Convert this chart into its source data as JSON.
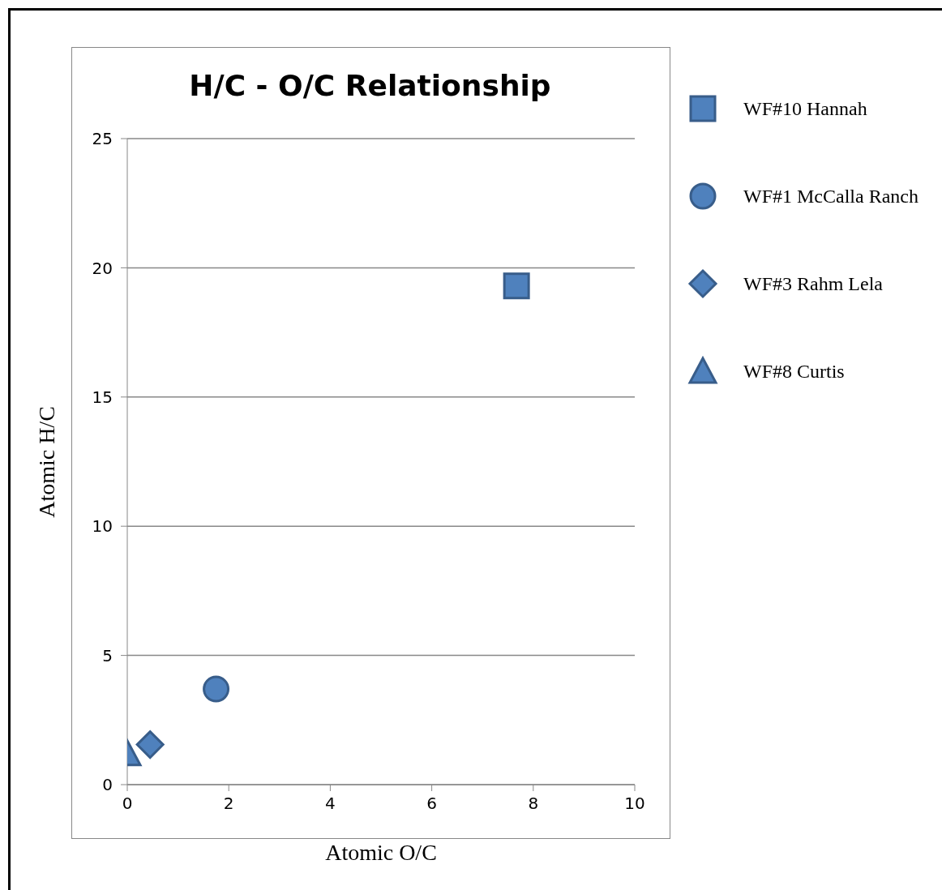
{
  "chart_data": {
    "type": "scatter",
    "title": "H/C - O/C Relationship",
    "xlabel": "Atomic O/C",
    "ylabel": "Atomic H/C",
    "xlim": [
      0,
      10
    ],
    "xticks": [
      0,
      2,
      4,
      6,
      8,
      10
    ],
    "ylim": [
      0,
      25
    ],
    "yticks": [
      0,
      5,
      10,
      15,
      20,
      25
    ],
    "grid": "y",
    "legend": "right",
    "series": [
      {
        "name": "WF#10 Hannah",
        "color": "#4f81bd",
        "marker": "square",
        "x": [
          7.67
        ],
        "values": [
          19.3
        ]
      },
      {
        "name": "WF#1 McCalla Ranch",
        "color": "#4f81bd",
        "marker": "circle",
        "x": [
          1.75
        ],
        "values": [
          3.7
        ]
      },
      {
        "name": "WF#3 Rahm Lela",
        "color": "#4f81bd",
        "marker": "diamond",
        "x": [
          0.45
        ],
        "values": [
          1.55
        ]
      },
      {
        "name": "WF#8 Curtis",
        "color": "#4f81bd",
        "marker": "triangle",
        "x": [
          0
        ],
        "values": [
          1.2
        ]
      }
    ]
  }
}
